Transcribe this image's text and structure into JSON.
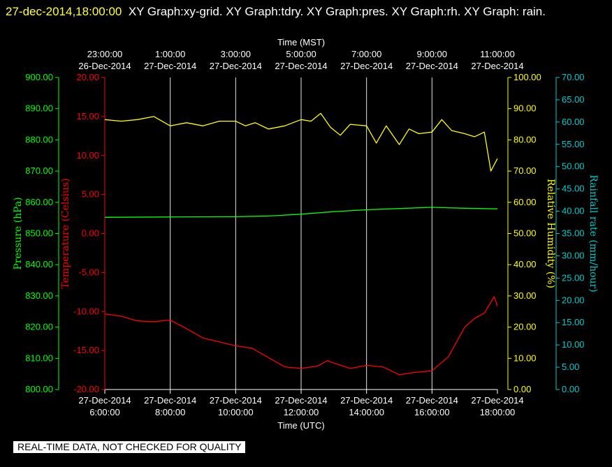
{
  "header": {
    "timestamp": "27-dec-2014,18:00:00",
    "text": "XY Graph:xy-grid.  XY Graph:tdry.  XY Graph:pres.  XY Graph:rh.  XY Graph: rain."
  },
  "note": "REAL-TIME DATA, NOT CHECKED FOR QUALITY",
  "colors": {
    "temperature": "#ff0000",
    "pressure": "#00ff00",
    "humidity": "#ffff00",
    "rain": "#00cccc",
    "grid": "#ffffff"
  },
  "chart_data": {
    "type": "line",
    "x_top_label": "Time (MST)",
    "x_bottom_label": "Time (UTC)",
    "x_bottom_ticks": [
      {
        "date": "27-Dec-2014",
        "time": "6:00:00"
      },
      {
        "date": "27-Dec-2014",
        "time": "8:00:00"
      },
      {
        "date": "27-Dec-2014",
        "time": "10:00:00"
      },
      {
        "date": "27-Dec-2014",
        "time": "12:00:00"
      },
      {
        "date": "27-Dec-2014",
        "time": "14:00:00"
      },
      {
        "date": "27-Dec-2014",
        "time": "16:00:00"
      },
      {
        "date": "27-Dec-2014",
        "time": "18:00:00"
      }
    ],
    "x_top_ticks": [
      {
        "time": "23:00:00",
        "date": "26-Dec-2014"
      },
      {
        "time": "1:00:00",
        "date": "27-Dec-2014"
      },
      {
        "time": "3:00:00",
        "date": "27-Dec-2014"
      },
      {
        "time": "5:00:00",
        "date": "27-Dec-2014"
      },
      {
        "time": "7:00:00",
        "date": "27-Dec-2014"
      },
      {
        "time": "9:00:00",
        "date": "27-Dec-2014"
      },
      {
        "time": "11:00:00",
        "date": "27-Dec-2014"
      }
    ],
    "x_range_utc_hours": [
      6,
      18
    ],
    "grid": true,
    "axes": {
      "pressure": {
        "label": "Pressure (hPa)",
        "ylim": [
          800,
          900
        ],
        "ticks": [
          "800.00",
          "810.00",
          "820.00",
          "830.00",
          "840.00",
          "850.00",
          "860.00",
          "870.00",
          "880.00",
          "890.00",
          "900.00"
        ]
      },
      "temperature": {
        "label": "Temperature (Celsius)",
        "ylim": [
          -20,
          20
        ],
        "ticks": [
          "-20.00",
          "-15.00",
          "-10.00",
          "-5.00",
          "0.00",
          "5.00",
          "10.00",
          "15.00",
          "20.00"
        ]
      },
      "humidity": {
        "label": "Relative Humidity (%)",
        "ylim": [
          0,
          100
        ],
        "ticks": [
          "0.00",
          "10.00",
          "20.00",
          "30.00",
          "40.00",
          "50.00",
          "60.00",
          "70.00",
          "80.00",
          "90.00",
          "100.00"
        ]
      },
      "rain": {
        "label": "Rainfall rate (mm/hour)",
        "ylim": [
          0,
          70
        ],
        "ticks": [
          "0.00",
          "5.00",
          "10.00",
          "15.00",
          "20.00",
          "25.00",
          "30.00",
          "35.00",
          "40.00",
          "45.00",
          "50.00",
          "55.00",
          "60.00",
          "65.00",
          "70.00"
        ]
      }
    },
    "series": [
      {
        "name": "tdry",
        "axis": "temperature",
        "x": [
          6.0,
          6.5,
          7.0,
          7.5,
          8.0,
          8.5,
          9.0,
          9.5,
          10.0,
          10.5,
          11.0,
          11.5,
          12.0,
          12.5,
          12.8,
          13.0,
          13.5,
          14.0,
          14.5,
          15.0,
          15.5,
          16.0,
          16.5,
          17.0,
          17.3,
          17.6,
          17.9,
          18.0
        ],
        "y": [
          -10.3,
          -10.6,
          -11.2,
          -11.3,
          -11.1,
          -12.2,
          -13.4,
          -13.9,
          -14.4,
          -14.7,
          -15.9,
          -17.1,
          -17.3,
          -17.0,
          -16.3,
          -16.6,
          -17.3,
          -16.9,
          -17.1,
          -18.1,
          -17.8,
          -17.6,
          -15.8,
          -12.0,
          -10.9,
          -10.2,
          -8.1,
          -9.3
        ]
      },
      {
        "name": "pres",
        "axis": "pressure",
        "x": [
          6.0,
          8.0,
          10.0,
          11.0,
          12.0,
          13.0,
          14.0,
          15.0,
          16.0,
          17.0,
          18.0
        ],
        "y": [
          855.2,
          855.3,
          855.4,
          855.6,
          856.2,
          857.0,
          857.6,
          858.0,
          858.4,
          858.1,
          857.9
        ]
      },
      {
        "name": "rh",
        "axis": "humidity",
        "x": [
          6.0,
          6.5,
          7.0,
          7.5,
          8.0,
          8.5,
          9.0,
          9.5,
          10.0,
          10.3,
          10.6,
          11.0,
          11.5,
          12.0,
          12.3,
          12.6,
          12.9,
          13.2,
          13.5,
          14.0,
          14.3,
          14.6,
          15.0,
          15.3,
          15.6,
          16.0,
          16.3,
          16.6,
          17.0,
          17.3,
          17.6,
          17.8,
          18.0
        ],
        "y": [
          86.5,
          86.0,
          86.5,
          87.5,
          84.5,
          85.5,
          84.5,
          86.0,
          86.0,
          84.5,
          85.5,
          83.5,
          84.5,
          86.5,
          86.0,
          88.5,
          84.0,
          81.5,
          85.0,
          84.5,
          79.0,
          84.5,
          78.5,
          83.5,
          82.0,
          82.5,
          86.5,
          83.0,
          82.0,
          81.0,
          82.5,
          70.0,
          74.0
        ]
      }
    ]
  }
}
